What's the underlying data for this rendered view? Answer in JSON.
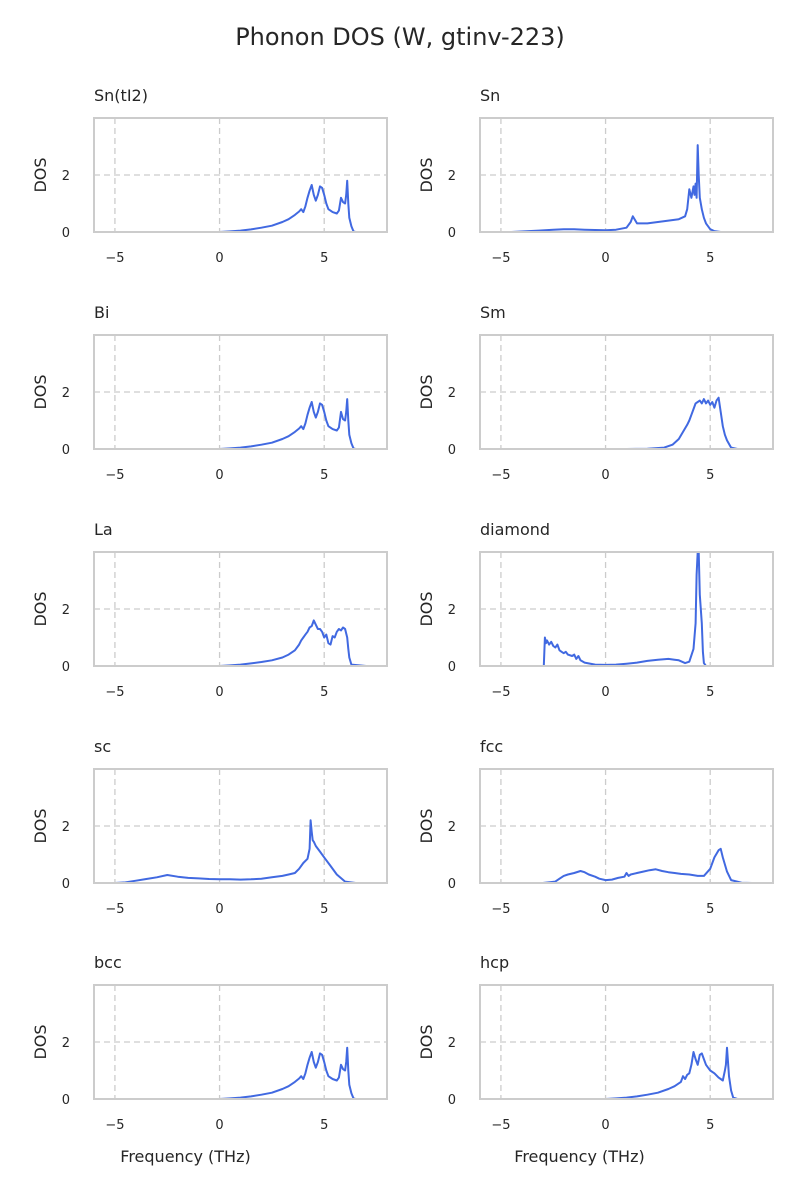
{
  "figure_title": "Phonon DOS (W, gtinv-223)",
  "chart_data": {
    "type": "line",
    "title": "Phonon DOS (W, gtinv-223)",
    "xlabel": "Frequency (THz)",
    "ylabel": "DOS",
    "xlim": [
      -6,
      8
    ],
    "ylim": [
      0,
      4
    ],
    "xticks": [
      -5,
      0,
      5
    ],
    "yticks": [
      0,
      2
    ],
    "grid": true,
    "line_color": "#4169E1",
    "grid_color": "#CCCCCC",
    "panels": [
      {
        "name": "Sn(tI2)",
        "x": [
          -5.0,
          0.0,
          0.5,
          1.0,
          1.5,
          2.0,
          2.5,
          3.0,
          3.3,
          3.6,
          3.8,
          3.9,
          4.0,
          4.1,
          4.2,
          4.3,
          4.4,
          4.5,
          4.6,
          4.7,
          4.8,
          4.9,
          5.0,
          5.1,
          5.2,
          5.4,
          5.6,
          5.7,
          5.8,
          5.9,
          6.0,
          6.05,
          6.1,
          6.15,
          6.2,
          6.3,
          6.4,
          6.5,
          7.0
        ],
        "y": [
          0,
          0,
          0.02,
          0.05,
          0.09,
          0.15,
          0.22,
          0.35,
          0.45,
          0.6,
          0.72,
          0.8,
          0.7,
          0.9,
          1.2,
          1.45,
          1.65,
          1.3,
          1.1,
          1.3,
          1.6,
          1.55,
          1.3,
          1.0,
          0.8,
          0.7,
          0.65,
          0.75,
          1.2,
          1.05,
          1.0,
          1.3,
          1.8,
          1.0,
          0.5,
          0.2,
          0.02,
          0,
          0
        ]
      },
      {
        "name": "Sn",
        "x": [
          -4.5,
          -3.2,
          -2.5,
          -2.0,
          -1.5,
          -1.0,
          -0.5,
          0.0,
          0.5,
          1.0,
          1.2,
          1.3,
          1.5,
          2.0,
          2.5,
          3.0,
          3.5,
          3.8,
          3.9,
          4.0,
          4.1,
          4.2,
          4.25,
          4.3,
          4.35,
          4.4,
          4.45,
          4.5,
          4.6,
          4.7,
          4.8,
          5.0,
          5.2,
          5.5,
          6.0
        ],
        "y": [
          0,
          0.05,
          0.08,
          0.1,
          0.1,
          0.08,
          0.07,
          0.06,
          0.08,
          0.15,
          0.35,
          0.55,
          0.3,
          0.3,
          0.35,
          0.4,
          0.45,
          0.55,
          0.8,
          1.5,
          1.2,
          1.6,
          1.3,
          1.7,
          1.2,
          3.05,
          2.0,
          1.2,
          0.8,
          0.5,
          0.3,
          0.1,
          0.03,
          0,
          0
        ]
      },
      {
        "name": "Bi",
        "x": [
          -5.0,
          0.0,
          0.5,
          1.0,
          1.5,
          2.0,
          2.5,
          3.0,
          3.3,
          3.6,
          3.8,
          3.9,
          4.0,
          4.1,
          4.2,
          4.3,
          4.4,
          4.5,
          4.6,
          4.7,
          4.8,
          4.9,
          5.0,
          5.1,
          5.2,
          5.4,
          5.6,
          5.7,
          5.8,
          5.9,
          6.0,
          6.05,
          6.1,
          6.15,
          6.2,
          6.3,
          6.4,
          6.5,
          7.0
        ],
        "y": [
          0,
          0,
          0.02,
          0.05,
          0.09,
          0.15,
          0.22,
          0.35,
          0.45,
          0.6,
          0.72,
          0.8,
          0.7,
          0.9,
          1.2,
          1.45,
          1.65,
          1.3,
          1.1,
          1.3,
          1.6,
          1.55,
          1.3,
          1.0,
          0.8,
          0.7,
          0.65,
          0.75,
          1.3,
          1.05,
          1.0,
          1.3,
          1.75,
          1.0,
          0.5,
          0.2,
          0.02,
          0,
          0
        ]
      },
      {
        "name": "Sm",
        "x": [
          1.0,
          2.0,
          2.8,
          3.2,
          3.5,
          3.7,
          3.9,
          4.0,
          4.1,
          4.2,
          4.3,
          4.4,
          4.5,
          4.6,
          4.7,
          4.8,
          4.9,
          5.0,
          5.1,
          5.2,
          5.3,
          5.4,
          5.5,
          5.6,
          5.7,
          5.8,
          6.0,
          6.3
        ],
        "y": [
          0,
          0.01,
          0.05,
          0.15,
          0.35,
          0.6,
          0.85,
          1.0,
          1.2,
          1.4,
          1.6,
          1.65,
          1.7,
          1.6,
          1.75,
          1.6,
          1.7,
          1.55,
          1.65,
          1.45,
          1.7,
          1.8,
          1.3,
          0.8,
          0.5,
          0.3,
          0.05,
          0
        ]
      },
      {
        "name": "La",
        "x": [
          -5.0,
          0.0,
          0.5,
          1.0,
          1.5,
          2.0,
          2.5,
          3.0,
          3.3,
          3.6,
          3.8,
          3.9,
          4.0,
          4.1,
          4.2,
          4.3,
          4.4,
          4.5,
          4.6,
          4.7,
          4.8,
          4.9,
          5.0,
          5.1,
          5.2,
          5.3,
          5.4,
          5.5,
          5.6,
          5.7,
          5.8,
          5.9,
          6.0,
          6.1,
          6.15,
          6.2,
          6.3,
          7.0
        ],
        "y": [
          0,
          0,
          0.02,
          0.05,
          0.09,
          0.14,
          0.2,
          0.3,
          0.4,
          0.55,
          0.75,
          0.9,
          1.0,
          1.1,
          1.2,
          1.35,
          1.4,
          1.6,
          1.45,
          1.3,
          1.3,
          1.2,
          1.0,
          1.1,
          0.8,
          0.75,
          1.05,
          1.0,
          1.2,
          1.3,
          1.25,
          1.35,
          1.3,
          1.0,
          0.6,
          0.3,
          0.05,
          0
        ]
      },
      {
        "name": "diamond",
        "x": [
          -4.0,
          -2.95,
          -2.9,
          -2.85,
          -2.8,
          -2.7,
          -2.6,
          -2.5,
          -2.4,
          -2.3,
          -2.2,
          -2.1,
          -2.0,
          -1.9,
          -1.8,
          -1.6,
          -1.5,
          -1.4,
          -1.3,
          -1.2,
          -1.0,
          -0.5,
          0.0,
          0.5,
          1.0,
          1.5,
          2.0,
          2.5,
          3.0,
          3.3,
          3.5,
          3.8,
          4.0,
          4.2,
          4.3,
          4.35,
          4.4,
          4.45,
          4.5,
          4.55,
          4.6,
          4.65,
          4.7,
          4.8,
          5.0,
          5.5
        ],
        "y": [
          0,
          0,
          1.0,
          0.8,
          0.9,
          0.75,
          0.85,
          0.7,
          0.65,
          0.75,
          0.55,
          0.5,
          0.45,
          0.5,
          0.4,
          0.35,
          0.4,
          0.25,
          0.35,
          0.2,
          0.12,
          0.05,
          0.04,
          0.05,
          0.08,
          0.12,
          0.18,
          0.22,
          0.25,
          0.22,
          0.2,
          0.1,
          0.15,
          0.6,
          1.5,
          3.2,
          4.0,
          4.0,
          2.5,
          2.0,
          1.5,
          0.5,
          0.1,
          0,
          0,
          0
        ]
      },
      {
        "name": "sc",
        "x": [
          -5.0,
          -4.5,
          -4.0,
          -3.5,
          -3.0,
          -2.5,
          -2.0,
          -1.5,
          -1.0,
          -0.5,
          0.0,
          0.5,
          1.0,
          1.5,
          2.0,
          2.5,
          3.0,
          3.3,
          3.6,
          3.8,
          4.0,
          4.2,
          4.3,
          4.35,
          4.4,
          4.45,
          4.5,
          4.6,
          4.8,
          5.0,
          5.3,
          5.6,
          6.0,
          6.5
        ],
        "y": [
          0,
          0.02,
          0.08,
          0.14,
          0.2,
          0.28,
          0.22,
          0.18,
          0.16,
          0.14,
          0.13,
          0.13,
          0.12,
          0.13,
          0.15,
          0.2,
          0.25,
          0.3,
          0.35,
          0.5,
          0.7,
          0.85,
          1.2,
          2.2,
          1.8,
          1.5,
          1.45,
          1.3,
          1.1,
          0.9,
          0.6,
          0.3,
          0.05,
          0
        ]
      },
      {
        "name": "fcc",
        "x": [
          -3.0,
          -2.4,
          -2.2,
          -2.0,
          -1.8,
          -1.5,
          -1.2,
          -1.0,
          -0.8,
          -0.5,
          -0.3,
          0.0,
          0.3,
          0.6,
          0.9,
          1.0,
          1.1,
          1.2,
          1.5,
          1.8,
          2.1,
          2.4,
          2.7,
          3.0,
          3.3,
          3.6,
          4.0,
          4.4,
          4.7,
          5.0,
          5.2,
          5.4,
          5.5,
          5.6,
          5.8,
          6.0,
          6.5,
          7.0
        ],
        "y": [
          0,
          0.05,
          0.15,
          0.25,
          0.3,
          0.35,
          0.42,
          0.38,
          0.3,
          0.22,
          0.15,
          0.1,
          0.12,
          0.18,
          0.22,
          0.35,
          0.25,
          0.3,
          0.35,
          0.4,
          0.45,
          0.48,
          0.42,
          0.38,
          0.35,
          0.32,
          0.3,
          0.25,
          0.25,
          0.5,
          0.9,
          1.15,
          1.2,
          0.9,
          0.4,
          0.1,
          0.01,
          0
        ]
      },
      {
        "name": "bcc",
        "x": [
          -5.0,
          0.0,
          0.5,
          1.0,
          1.5,
          2.0,
          2.5,
          3.0,
          3.3,
          3.6,
          3.8,
          3.9,
          4.0,
          4.1,
          4.2,
          4.3,
          4.4,
          4.5,
          4.6,
          4.7,
          4.8,
          4.9,
          5.0,
          5.1,
          5.2,
          5.4,
          5.6,
          5.7,
          5.8,
          5.9,
          6.0,
          6.05,
          6.1,
          6.15,
          6.2,
          6.3,
          6.4,
          6.5,
          7.0
        ],
        "y": [
          0,
          0,
          0.02,
          0.05,
          0.09,
          0.15,
          0.22,
          0.35,
          0.45,
          0.6,
          0.72,
          0.8,
          0.7,
          0.9,
          1.2,
          1.45,
          1.65,
          1.3,
          1.1,
          1.3,
          1.6,
          1.55,
          1.3,
          1.0,
          0.8,
          0.7,
          0.65,
          0.75,
          1.2,
          1.05,
          1.0,
          1.3,
          1.8,
          1.0,
          0.5,
          0.2,
          0.02,
          0,
          0
        ]
      },
      {
        "name": "hcp",
        "x": [
          -5.0,
          0.0,
          0.5,
          1.0,
          1.5,
          2.0,
          2.5,
          3.0,
          3.3,
          3.6,
          3.7,
          3.8,
          3.9,
          4.0,
          4.1,
          4.2,
          4.3,
          4.4,
          4.5,
          4.6,
          4.7,
          4.8,
          4.9,
          5.0,
          5.2,
          5.4,
          5.5,
          5.6,
          5.7,
          5.75,
          5.8,
          5.85,
          5.9,
          6.0,
          6.1,
          6.3,
          6.5,
          7.0
        ],
        "y": [
          0,
          0,
          0.02,
          0.05,
          0.09,
          0.15,
          0.22,
          0.35,
          0.45,
          0.6,
          0.8,
          0.7,
          0.85,
          0.9,
          1.2,
          1.65,
          1.4,
          1.2,
          1.55,
          1.6,
          1.4,
          1.2,
          1.1,
          1.0,
          0.9,
          0.75,
          0.7,
          0.65,
          1.0,
          1.2,
          1.8,
          1.3,
          0.8,
          0.3,
          0.05,
          0,
          0,
          0
        ]
      }
    ]
  }
}
